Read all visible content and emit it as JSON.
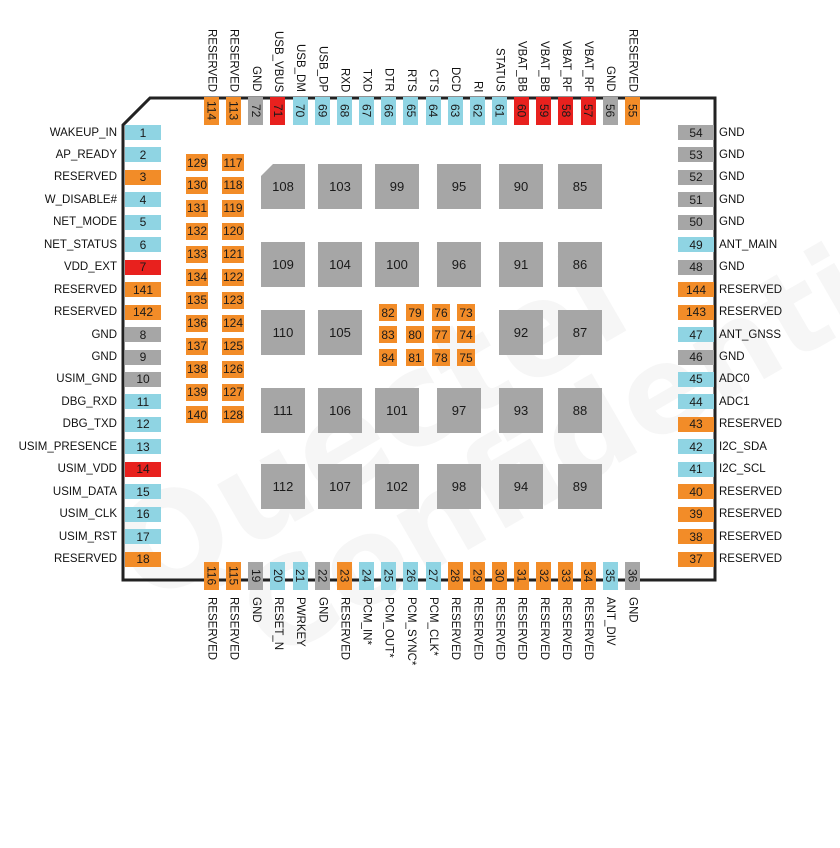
{
  "colors": {
    "blue": "#8fd4e3",
    "orange": "#f28c28",
    "red": "#e8211e",
    "gray": "#a6a6a6",
    "outline": "#222222"
  },
  "watermark": [
    "Quectel",
    "Confidential"
  ],
  "left_pins": [
    {
      "num": "1",
      "label": "WAKEUP_IN",
      "type": "blue"
    },
    {
      "num": "2",
      "label": "AP_READY",
      "type": "blue"
    },
    {
      "num": "3",
      "label": "RESERVED",
      "type": "orange"
    },
    {
      "num": "4",
      "label": "W_DISABLE#",
      "type": "blue"
    },
    {
      "num": "5",
      "label": "NET_MODE",
      "type": "blue"
    },
    {
      "num": "6",
      "label": "NET_STATUS",
      "type": "blue"
    },
    {
      "num": "7",
      "label": "VDD_EXT",
      "type": "red"
    },
    {
      "num": "141",
      "label": "RESERVED",
      "type": "orange"
    },
    {
      "num": "142",
      "label": "RESERVED",
      "type": "orange"
    },
    {
      "num": "8",
      "label": "GND",
      "type": "gray"
    },
    {
      "num": "9",
      "label": "GND",
      "type": "gray"
    },
    {
      "num": "10",
      "label": "USIM_GND",
      "type": "gray"
    },
    {
      "num": "11",
      "label": "DBG_RXD",
      "type": "blue"
    },
    {
      "num": "12",
      "label": "DBG_TXD",
      "type": "blue"
    },
    {
      "num": "13",
      "label": "USIM_PRESENCE",
      "type": "blue"
    },
    {
      "num": "14",
      "label": "USIM_VDD",
      "type": "red"
    },
    {
      "num": "15",
      "label": "USIM_DATA",
      "type": "blue"
    },
    {
      "num": "16",
      "label": "USIM_CLK",
      "type": "blue"
    },
    {
      "num": "17",
      "label": "USIM_RST",
      "type": "blue"
    },
    {
      "num": "18",
      "label": "RESERVED",
      "type": "orange"
    }
  ],
  "right_pins": [
    {
      "num": "54",
      "label": "GND",
      "type": "gray"
    },
    {
      "num": "53",
      "label": "GND",
      "type": "gray"
    },
    {
      "num": "52",
      "label": "GND",
      "type": "gray"
    },
    {
      "num": "51",
      "label": "GND",
      "type": "gray"
    },
    {
      "num": "50",
      "label": "GND",
      "type": "gray"
    },
    {
      "num": "49",
      "label": "ANT_MAIN",
      "type": "blue"
    },
    {
      "num": "48",
      "label": "GND",
      "type": "gray"
    },
    {
      "num": "144",
      "label": "RESERVED",
      "type": "orange"
    },
    {
      "num": "143",
      "label": "RESERVED",
      "type": "orange"
    },
    {
      "num": "47",
      "label": "ANT_GNSS",
      "type": "blue"
    },
    {
      "num": "46",
      "label": "GND",
      "type": "gray"
    },
    {
      "num": "45",
      "label": "ADC0",
      "type": "blue"
    },
    {
      "num": "44",
      "label": "ADC1",
      "type": "blue"
    },
    {
      "num": "43",
      "label": "RESERVED",
      "type": "orange"
    },
    {
      "num": "42",
      "label": "I2C_SDA",
      "type": "blue"
    },
    {
      "num": "41",
      "label": "I2C_SCL",
      "type": "blue"
    },
    {
      "num": "40",
      "label": "RESERVED",
      "type": "orange"
    },
    {
      "num": "39",
      "label": "RESERVED",
      "type": "orange"
    },
    {
      "num": "38",
      "label": "RESERVED",
      "type": "orange"
    },
    {
      "num": "37",
      "label": "RESERVED",
      "type": "orange"
    }
  ],
  "top_pins": [
    {
      "num": "114",
      "label": "RESERVED",
      "type": "orange"
    },
    {
      "num": "113",
      "label": "RESERVED",
      "type": "orange"
    },
    {
      "num": "72",
      "label": "GND",
      "type": "gray"
    },
    {
      "num": "71",
      "label": "USB_VBUS",
      "type": "red"
    },
    {
      "num": "70",
      "label": "USB_DM",
      "type": "blue"
    },
    {
      "num": "69",
      "label": "USB_DP",
      "type": "blue"
    },
    {
      "num": "68",
      "label": "RXD",
      "type": "blue"
    },
    {
      "num": "67",
      "label": "TXD",
      "type": "blue"
    },
    {
      "num": "66",
      "label": "DTR",
      "type": "blue"
    },
    {
      "num": "65",
      "label": "RTS",
      "type": "blue"
    },
    {
      "num": "64",
      "label": "CTS",
      "type": "blue"
    },
    {
      "num": "63",
      "label": "DCD",
      "type": "blue"
    },
    {
      "num": "62",
      "label": "RI",
      "type": "blue"
    },
    {
      "num": "61",
      "label": "STATUS",
      "type": "blue"
    },
    {
      "num": "60",
      "label": "VBAT_BB",
      "type": "red"
    },
    {
      "num": "59",
      "label": "VBAT_BB",
      "type": "red"
    },
    {
      "num": "58",
      "label": "VBAT_RF",
      "type": "red"
    },
    {
      "num": "57",
      "label": "VBAT_RF",
      "type": "red"
    },
    {
      "num": "56",
      "label": "GND",
      "type": "gray"
    },
    {
      "num": "55",
      "label": "RESERVED",
      "type": "orange"
    }
  ],
  "bottom_pins": [
    {
      "num": "116",
      "label": "RESERVED",
      "type": "orange"
    },
    {
      "num": "115",
      "label": "RESERVED",
      "type": "orange"
    },
    {
      "num": "19",
      "label": "GND",
      "type": "gray"
    },
    {
      "num": "20",
      "label": "RESET_N",
      "type": "blue"
    },
    {
      "num": "21",
      "label": "PWRKEY",
      "type": "blue"
    },
    {
      "num": "22",
      "label": "GND",
      "type": "gray"
    },
    {
      "num": "23",
      "label": "RESERVED",
      "type": "orange"
    },
    {
      "num": "24",
      "label": "PCM_IN*",
      "type": "blue"
    },
    {
      "num": "25",
      "label": "PCM_OUT*",
      "type": "blue"
    },
    {
      "num": "26",
      "label": "PCM_SYNC*",
      "type": "blue"
    },
    {
      "num": "27",
      "label": "PCM_CLK*",
      "type": "blue"
    },
    {
      "num": "28",
      "label": "RESERVED",
      "type": "orange"
    },
    {
      "num": "29",
      "label": "RESERVED",
      "type": "orange"
    },
    {
      "num": "30",
      "label": "RESERVED",
      "type": "orange"
    },
    {
      "num": "31",
      "label": "RESERVED",
      "type": "orange"
    },
    {
      "num": "32",
      "label": "RESERVED",
      "type": "orange"
    },
    {
      "num": "33",
      "label": "RESERVED",
      "type": "orange"
    },
    {
      "num": "34",
      "label": "RESERVED",
      "type": "orange"
    },
    {
      "num": "35",
      "label": "ANT_DIV",
      "type": "blue"
    },
    {
      "num": "36",
      "label": "GND",
      "type": "gray"
    }
  ],
  "inner_left_col1": [
    "129",
    "130",
    "131",
    "132",
    "133",
    "134",
    "135",
    "136",
    "137",
    "138",
    "139",
    "140"
  ],
  "inner_left_col2": [
    "117",
    "118",
    "119",
    "120",
    "121",
    "122",
    "123",
    "124",
    "125",
    "126",
    "127",
    "128"
  ],
  "center_pads": [
    [
      "82",
      "79",
      "76",
      "73"
    ],
    [
      "83",
      "80",
      "77",
      "74"
    ],
    [
      "84",
      "81",
      "78",
      "75"
    ]
  ],
  "gnd_pads": [
    [
      "108",
      "103",
      "99",
      "95",
      "90",
      "85"
    ],
    [
      "109",
      "104",
      "100",
      "96",
      "91",
      "86"
    ],
    [
      "110",
      "105",
      "",
      "",
      "92",
      "87"
    ],
    [
      "111",
      "106",
      "101",
      "97",
      "93",
      "88"
    ],
    [
      "112",
      "107",
      "102",
      "98",
      "94",
      "89"
    ]
  ]
}
